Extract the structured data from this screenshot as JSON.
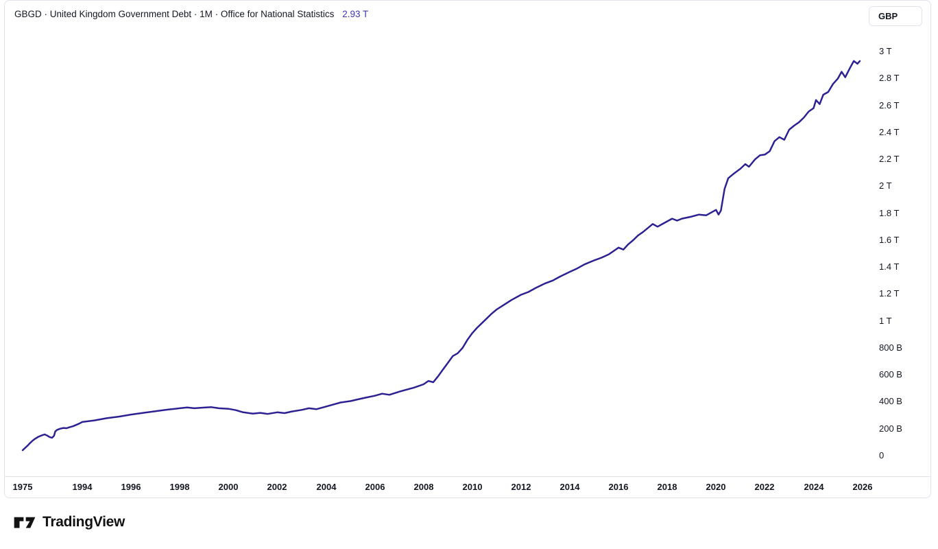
{
  "header": {
    "title": "GBGD · United Kingdom Government Debt · 1M · Office for National Statistics",
    "last_value": "2.93 T",
    "currency": "GBP"
  },
  "footer": {
    "brand": "TradingView"
  },
  "colors": {
    "line": "#2c2193",
    "value_text": "#3d35b1",
    "text": "#131722",
    "border": "#e0e3eb"
  },
  "chart_data": {
    "type": "line",
    "title": "GBGD · United Kingdom Government Debt · 1M · Office for National Statistics",
    "symbol": "GBGD",
    "interval": "1M",
    "source": "Office for National Statistics",
    "unit": "GBP",
    "last_value": "2.93 T",
    "ylim_billions": [
      0,
      3000
    ],
    "grid": false,
    "legend_position": "top-left",
    "x_ticks": [
      {
        "year": 1975,
        "label": "1975"
      },
      {
        "year": 1994,
        "label": "1994"
      },
      {
        "year": 1996,
        "label": "1996"
      },
      {
        "year": 1998,
        "label": "1998"
      },
      {
        "year": 2000,
        "label": "2000"
      },
      {
        "year": 2002,
        "label": "2002"
      },
      {
        "year": 2004,
        "label": "2004"
      },
      {
        "year": 2006,
        "label": "2006"
      },
      {
        "year": 2008,
        "label": "2008"
      },
      {
        "year": 2010,
        "label": "2010"
      },
      {
        "year": 2012,
        "label": "2012"
      },
      {
        "year": 2014,
        "label": "2014"
      },
      {
        "year": 2016,
        "label": "2016"
      },
      {
        "year": 2018,
        "label": "2018"
      },
      {
        "year": 2020,
        "label": "2020"
      },
      {
        "year": 2022,
        "label": "2022"
      },
      {
        "year": 2024,
        "label": "2024"
      },
      {
        "year": 2026,
        "label": "2026"
      }
    ],
    "y_ticks": [
      {
        "v": 0,
        "label": "0"
      },
      {
        "v": 200,
        "label": "200 B"
      },
      {
        "v": 400,
        "label": "400 B"
      },
      {
        "v": 600,
        "label": "600 B"
      },
      {
        "v": 800,
        "label": "800 B"
      },
      {
        "v": 1000,
        "label": "1 T"
      },
      {
        "v": 1200,
        "label": "1.2 T"
      },
      {
        "v": 1400,
        "label": "1.4 T"
      },
      {
        "v": 1600,
        "label": "1.6 T"
      },
      {
        "v": 1800,
        "label": "1.8 T"
      },
      {
        "v": 2000,
        "label": "2 T"
      },
      {
        "v": 2200,
        "label": "2.2 T"
      },
      {
        "v": 2400,
        "label": "2.4 T"
      },
      {
        "v": 2600,
        "label": "2.6 T"
      },
      {
        "v": 2800,
        "label": "2.8 T"
      },
      {
        "v": 3000,
        "label": "3 T"
      }
    ],
    "series": [
      {
        "name": "United Kingdom Government Debt (GBP, billions)",
        "points": [
          [
            1975,
            40
          ],
          [
            1975.8,
            58
          ],
          [
            1976.6,
            75
          ],
          [
            1977.4,
            95
          ],
          [
            1978.2,
            112
          ],
          [
            1979,
            126
          ],
          [
            1980,
            140
          ],
          [
            1981,
            150
          ],
          [
            1982,
            158
          ],
          [
            1982.8,
            150
          ],
          [
            1983.6,
            138
          ],
          [
            1984.4,
            133
          ],
          [
            1985,
            148
          ],
          [
            1985.4,
            180
          ],
          [
            1986,
            192
          ],
          [
            1987,
            200
          ],
          [
            1988,
            206
          ],
          [
            1989,
            204
          ],
          [
            1990,
            212
          ],
          [
            1991,
            218
          ],
          [
            1992,
            228
          ],
          [
            1993,
            238
          ],
          [
            1994,
            250
          ],
          [
            1994.5,
            262
          ],
          [
            1995,
            278
          ],
          [
            1995.5,
            290
          ],
          [
            1996,
            305
          ],
          [
            1996.5,
            318
          ],
          [
            1997,
            330
          ],
          [
            1997.5,
            342
          ],
          [
            1998,
            352
          ],
          [
            1998.3,
            358
          ],
          [
            1998.6,
            352
          ],
          [
            1999,
            357
          ],
          [
            1999.3,
            360
          ],
          [
            1999.6,
            352
          ],
          [
            2000,
            348
          ],
          [
            2000.3,
            338
          ],
          [
            2000.6,
            322
          ],
          [
            2001,
            312
          ],
          [
            2001.3,
            318
          ],
          [
            2001.6,
            310
          ],
          [
            2002,
            322
          ],
          [
            2002.3,
            316
          ],
          [
            2002.6,
            328
          ],
          [
            2003,
            340
          ],
          [
            2003.3,
            352
          ],
          [
            2003.6,
            345
          ],
          [
            2004,
            365
          ],
          [
            2004.3,
            380
          ],
          [
            2004.6,
            395
          ],
          [
            2005,
            405
          ],
          [
            2005.3,
            418
          ],
          [
            2005.6,
            430
          ],
          [
            2006,
            445
          ],
          [
            2006.3,
            460
          ],
          [
            2006.6,
            452
          ],
          [
            2007,
            475
          ],
          [
            2007.3,
            490
          ],
          [
            2007.6,
            505
          ],
          [
            2008,
            530
          ],
          [
            2008.2,
            555
          ],
          [
            2008.4,
            545
          ],
          [
            2008.6,
            590
          ],
          [
            2008.8,
            640
          ],
          [
            2009,
            690
          ],
          [
            2009.2,
            740
          ],
          [
            2009.4,
            760
          ],
          [
            2009.6,
            800
          ],
          [
            2009.8,
            860
          ],
          [
            2010,
            910
          ],
          [
            2010.2,
            950
          ],
          [
            2010.4,
            985
          ],
          [
            2010.6,
            1020
          ],
          [
            2010.8,
            1055
          ],
          [
            2011,
            1085
          ],
          [
            2011.3,
            1120
          ],
          [
            2011.6,
            1155
          ],
          [
            2012,
            1195
          ],
          [
            2012.3,
            1215
          ],
          [
            2012.6,
            1245
          ],
          [
            2013,
            1280
          ],
          [
            2013.3,
            1300
          ],
          [
            2013.6,
            1330
          ],
          [
            2014,
            1365
          ],
          [
            2014.3,
            1390
          ],
          [
            2014.6,
            1420
          ],
          [
            2015,
            1450
          ],
          [
            2015.3,
            1470
          ],
          [
            2015.6,
            1495
          ],
          [
            2016,
            1545
          ],
          [
            2016.2,
            1530
          ],
          [
            2016.4,
            1570
          ],
          [
            2016.6,
            1600
          ],
          [
            2016.8,
            1635
          ],
          [
            2017,
            1660
          ],
          [
            2017.2,
            1690
          ],
          [
            2017.4,
            1720
          ],
          [
            2017.6,
            1700
          ],
          [
            2017.8,
            1720
          ],
          [
            2018,
            1740
          ],
          [
            2018.2,
            1760
          ],
          [
            2018.4,
            1745
          ],
          [
            2018.6,
            1760
          ],
          [
            2019,
            1775
          ],
          [
            2019.3,
            1790
          ],
          [
            2019.6,
            1785
          ],
          [
            2019.8,
            1805
          ],
          [
            2020,
            1825
          ],
          [
            2020.1,
            1790
          ],
          [
            2020.2,
            1820
          ],
          [
            2020.35,
            1980
          ],
          [
            2020.5,
            2060
          ],
          [
            2020.7,
            2090
          ],
          [
            2021,
            2130
          ],
          [
            2021.2,
            2165
          ],
          [
            2021.35,
            2145
          ],
          [
            2021.6,
            2200
          ],
          [
            2021.8,
            2230
          ],
          [
            2022,
            2235
          ],
          [
            2022.2,
            2260
          ],
          [
            2022.4,
            2335
          ],
          [
            2022.6,
            2365
          ],
          [
            2022.8,
            2345
          ],
          [
            2023,
            2420
          ],
          [
            2023.2,
            2450
          ],
          [
            2023.4,
            2475
          ],
          [
            2023.6,
            2510
          ],
          [
            2023.8,
            2555
          ],
          [
            2024,
            2580
          ],
          [
            2024.1,
            2640
          ],
          [
            2024.25,
            2610
          ],
          [
            2024.4,
            2680
          ],
          [
            2024.6,
            2700
          ],
          [
            2024.8,
            2760
          ],
          [
            2025,
            2800
          ],
          [
            2025.15,
            2850
          ],
          [
            2025.3,
            2810
          ],
          [
            2025.5,
            2880
          ],
          [
            2025.65,
            2930
          ],
          [
            2025.8,
            2910
          ],
          [
            2025.9,
            2930
          ]
        ]
      }
    ]
  }
}
